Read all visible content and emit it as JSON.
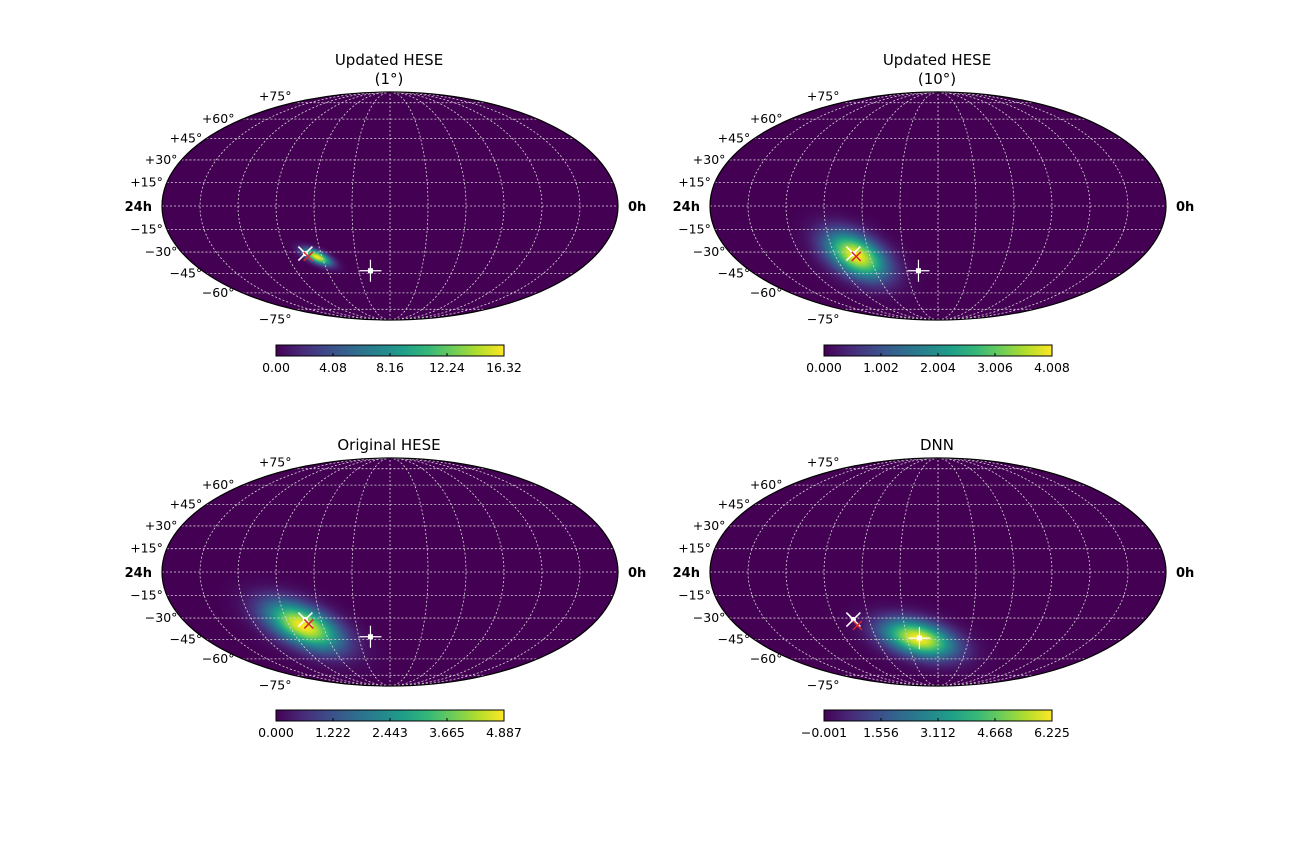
{
  "chart_data": [
    {
      "type": "heatmap",
      "projection": "mollweide",
      "title": [
        "Updated HESE",
        "(1°)"
      ],
      "ra_labels": {
        "left": "24h",
        "right": "0h"
      },
      "dec_labels": [
        "+75°",
        "+60°",
        "+45°",
        "+30°",
        "+15°",
        "−15°",
        "−30°",
        "−45°",
        "−60°",
        "−75°"
      ],
      "colorbar": {
        "ticks": [
          "0.00",
          "4.08",
          "8.16",
          "12.24",
          "16.32"
        ],
        "range": [
          0,
          16.32
        ]
      },
      "blob": {
        "center_ra_h": 16.3,
        "center_dec": -33,
        "peak": 16.32,
        "sigma_deg": [
          4,
          1.5
        ],
        "angle_deg": 25
      },
      "markers": [
        {
          "kind": "star",
          "color": "#ffffff",
          "ra_h": 16.9,
          "dec": -31
        },
        {
          "kind": "x",
          "color": "#d62728",
          "ra_h": 16.8,
          "dec": -33
        },
        {
          "kind": "plus",
          "color": "#ffffff",
          "ra_h": 13.25,
          "dec": -43
        }
      ]
    },
    {
      "type": "heatmap",
      "projection": "mollweide",
      "title": [
        "Updated HESE",
        "(10°)"
      ],
      "ra_labels": {
        "left": "24h",
        "right": "0h"
      },
      "dec_labels": [
        "+75°",
        "+60°",
        "+45°",
        "+30°",
        "+15°",
        "−15°",
        "−30°",
        "−45°",
        "−60°",
        "−75°"
      ],
      "colorbar": {
        "ticks": [
          "0.000",
          "1.002",
          "2.004",
          "3.006",
          "4.008"
        ],
        "range": [
          0,
          4.008
        ]
      },
      "blob": {
        "center_ra_h": 16.8,
        "center_dec": -32,
        "peak": 4.008,
        "sigma_deg": [
          9,
          5
        ],
        "angle_deg": 30
      },
      "markers": [
        {
          "kind": "star",
          "color": "#ffffff",
          "ra_h": 16.9,
          "dec": -31
        },
        {
          "kind": "x",
          "color": "#d62728",
          "ra_h": 16.8,
          "dec": -33
        },
        {
          "kind": "plus",
          "color": "#ffffff",
          "ra_h": 13.25,
          "dec": -43
        }
      ]
    },
    {
      "type": "heatmap",
      "projection": "mollweide",
      "title": [
        "Original HESE"
      ],
      "ra_labels": {
        "left": "24h",
        "right": "0h"
      },
      "dec_labels": [
        "+75°",
        "+60°",
        "+45°",
        "+30°",
        "+15°",
        "−15°",
        "−30°",
        "−45°",
        "−60°",
        "−75°"
      ],
      "colorbar": {
        "ticks": [
          "0.000",
          "1.222",
          "2.443",
          "3.665",
          "4.887"
        ],
        "range": [
          0,
          4.887
        ]
      },
      "blob": {
        "center_ra_h": 17.2,
        "center_dec": -35,
        "peak": 4.887,
        "sigma_deg": [
          11,
          5
        ],
        "angle_deg": 25
      },
      "markers": [
        {
          "kind": "star",
          "color": "#ffffff",
          "ra_h": 16.9,
          "dec": -31
        },
        {
          "kind": "x",
          "color": "#d62728",
          "ra_h": 16.8,
          "dec": -34
        },
        {
          "kind": "plus",
          "color": "#ffffff",
          "ra_h": 13.25,
          "dec": -43
        }
      ]
    },
    {
      "type": "heatmap",
      "projection": "mollweide",
      "title": [
        "DNN"
      ],
      "ra_labels": {
        "left": "24h",
        "right": "0h"
      },
      "dec_labels": [
        "+75°",
        "+60°",
        "+45°",
        "+30°",
        "+15°",
        "−15°",
        "−30°",
        "−45°",
        "−60°",
        "−75°"
      ],
      "colorbar": {
        "ticks": [
          "−0.001",
          "1.556",
          "3.112",
          "4.668",
          "6.225"
        ],
        "range": [
          -0.001,
          6.225
        ]
      },
      "blob": {
        "center_ra_h": 13.3,
        "center_dec": -44,
        "peak": 6.225,
        "sigma_deg": [
          10,
          4.5
        ],
        "angle_deg": 15
      },
      "markers": [
        {
          "kind": "star",
          "color": "#ffffff",
          "ra_h": 16.9,
          "dec": -31
        },
        {
          "kind": "x",
          "color": "#d62728",
          "ra_h": 16.8,
          "dec": -35
        },
        {
          "kind": "plus",
          "color": "#ffffff",
          "ra_h": 13.2,
          "dec": -44
        }
      ]
    }
  ]
}
